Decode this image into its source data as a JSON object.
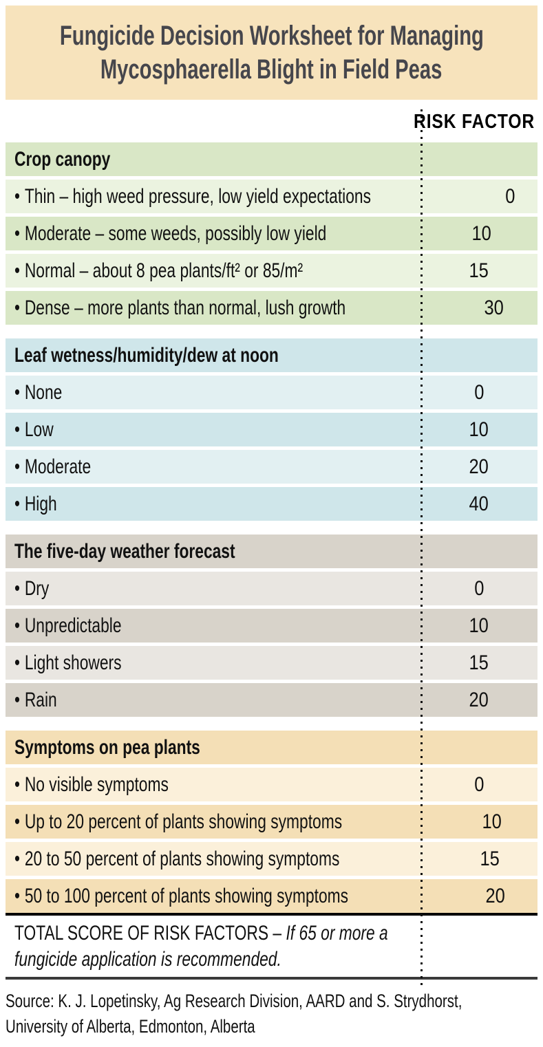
{
  "title": {
    "line1": "Fungicide Decision Worksheet for Managing",
    "line2": "Mycosphaerella Blight in Field Peas"
  },
  "risk_factor_header": "RISK FACTOR",
  "bullet": "•",
  "sections": [
    {
      "name": "Crop canopy",
      "rows": [
        {
          "label": "Thin – high weed pressure, low yield expectations",
          "value": "0"
        },
        {
          "label": "Moderate – some weeds, possibly low yield",
          "value": "10"
        },
        {
          "label": "Normal – about 8 pea plants/ft² or 85/m²",
          "value": "15"
        },
        {
          "label": "Dense – more plants than normal, lush growth",
          "value": "30"
        }
      ]
    },
    {
      "name": "Leaf wetness/humidity/dew at noon",
      "rows": [
        {
          "label": "None",
          "value": "0"
        },
        {
          "label": "Low",
          "value": "10"
        },
        {
          "label": "Moderate",
          "value": "20"
        },
        {
          "label": "High",
          "value": "40"
        }
      ]
    },
    {
      "name": "The five-day weather forecast",
      "rows": [
        {
          "label": "Dry",
          "value": "0"
        },
        {
          "label": "Unpredictable",
          "value": "10"
        },
        {
          "label": "Light showers",
          "value": "15"
        },
        {
          "label": "Rain",
          "value": "20"
        }
      ]
    },
    {
      "name": "Symptoms on pea plants",
      "rows": [
        {
          "label": "No visible symptoms",
          "value": "0"
        },
        {
          "label": "Up to 20 percent of plants showing symptoms",
          "value": "10"
        },
        {
          "label": "20 to 50 percent of plants showing symptoms",
          "value": "15"
        },
        {
          "label": "50 to 100 percent of plants showing symptoms",
          "value": "20"
        }
      ]
    }
  ],
  "total": {
    "label": "TOTAL SCORE OF RISK FACTORS – ",
    "note_line1": "If 65 or more a",
    "note_line2": "fungicide application is recommended."
  },
  "source": {
    "line1": "Source: K. J. Lopetinsky, Ag Research Division, AARD and S. Strydhorst,",
    "line2": "University of Alberta, Edmonton, Alberta"
  },
  "colors": {
    "title_bg": "#f7e3bc",
    "title_text": "#46464c",
    "text": "#121212",
    "green_dark": "#d9e7c6",
    "green_light": "#ebf3e0",
    "blue_dark": "#cfe6ea",
    "blue_light": "#e2f0f2",
    "taupe_dark": "#d8d3ca",
    "taupe_light": "#e9e6e1",
    "tan_dark": "#f4dfb6",
    "tan_light": "#fbf0da",
    "rule_dark": "#000000",
    "rule_gray": "#3a3a3a",
    "dot": "#111111"
  }
}
